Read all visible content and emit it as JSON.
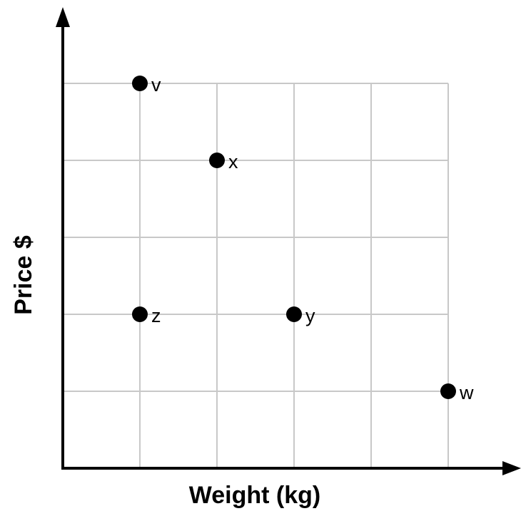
{
  "chart_data": {
    "type": "scatter",
    "title": "",
    "xlabel": "Weight (kg)",
    "ylabel": "Price $",
    "xlim": [
      0,
      5
    ],
    "ylim": [
      0,
      5
    ],
    "grid": true,
    "legend": "none",
    "tick_labels_shown": false,
    "points": [
      {
        "label": "v",
        "x": 1,
        "y": 5
      },
      {
        "label": "x",
        "x": 2,
        "y": 4
      },
      {
        "label": "z",
        "x": 1,
        "y": 2
      },
      {
        "label": "y",
        "x": 3,
        "y": 2
      },
      {
        "label": "w",
        "x": 5,
        "y": 1
      }
    ],
    "colors": {
      "points": "#000000",
      "axes": "#000000",
      "grid": "#c8c8c8"
    }
  }
}
